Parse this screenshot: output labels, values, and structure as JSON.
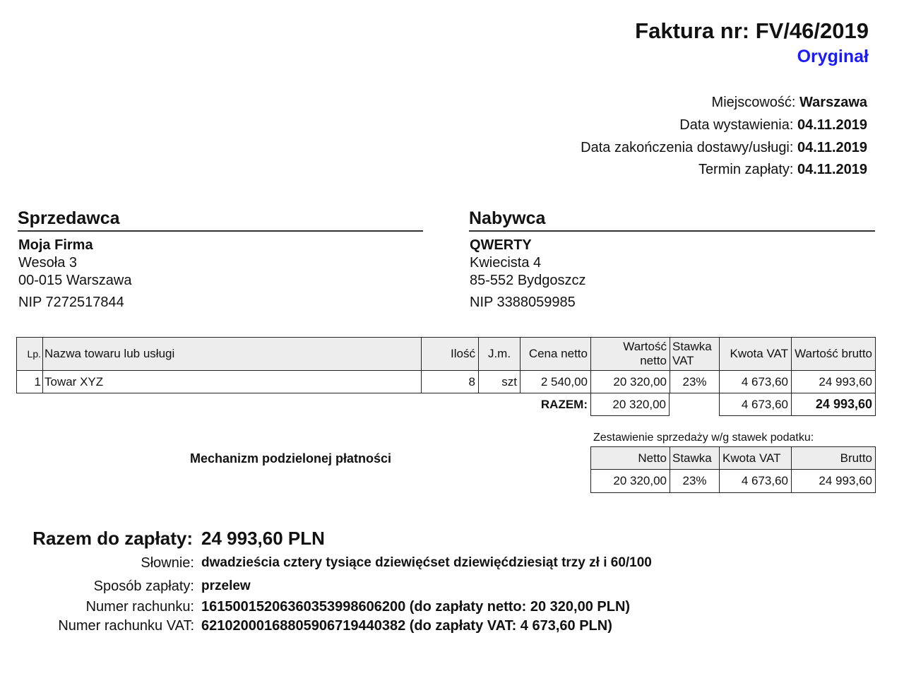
{
  "header": {
    "title": "Faktura nr: FV/46/2019",
    "copy": "Oryginał"
  },
  "meta": [
    {
      "label": "Miejscowość:",
      "value": "Warszawa"
    },
    {
      "label": "Data wystawienia:",
      "value": "04.11.2019"
    },
    {
      "label": "Data zakończenia dostawy/usługi:",
      "value": "04.11.2019"
    },
    {
      "label": "Termin zapłaty:",
      "value": "04.11.2019"
    }
  ],
  "seller": {
    "heading": "Sprzedawca",
    "name": "Moja Firma",
    "street": "Wesoła 3",
    "city": "00-015 Warszawa",
    "nip": "NIP 7272517844"
  },
  "buyer": {
    "heading": "Nabywca",
    "name": "QWERTY",
    "street": "Kwiecista 4",
    "city": "85-552 Bydgoszcz",
    "nip": "NIP 3388059985"
  },
  "items": {
    "headers": [
      "Lp.",
      "Nazwa towaru lub usługi",
      "Ilość",
      "J.m.",
      "Cena netto",
      "Wartość netto",
      "Stawka VAT",
      "Kwota VAT",
      "Wartość brutto"
    ],
    "rows": [
      [
        "1",
        "Towar XYZ",
        "8",
        "szt",
        "2 540,00",
        "20 320,00",
        "23%",
        "4 673,60",
        "24 993,60"
      ]
    ],
    "total_label": "RAZEM:",
    "total_netto": "20 320,00",
    "total_vat": "4 673,60",
    "total_brutto": "24 993,60"
  },
  "split_payment": "Mechanizm podzielonej płatności",
  "summary": {
    "title": "Zestawienie sprzedaży w/g stawek podatku:",
    "headers": [
      "Netto",
      "Stawka",
      "Kwota VAT",
      "Brutto"
    ],
    "row": [
      "20 320,00",
      "23%",
      "4 673,60",
      "24 993,60"
    ]
  },
  "payment": {
    "total_label": "Razem do zapłaty:",
    "total_value": "24 993,60 PLN",
    "words_label": "Słownie:",
    "words": "dwadzieścia cztery tysiące dziewięćset dziewięćdziesiąt trzy zł i 60/100",
    "method_label": "Sposób zapłaty:",
    "method": "przelew",
    "account_label": "Numer rachunku:",
    "account": "16150015206360353998606200 (do zapłaty netto: 20 320,00 PLN)",
    "vat_account_label": "Numer rachunku VAT:",
    "vat_account": "62102000168805906719440382 (do zapłaty VAT: 4 673,60 PLN)"
  }
}
